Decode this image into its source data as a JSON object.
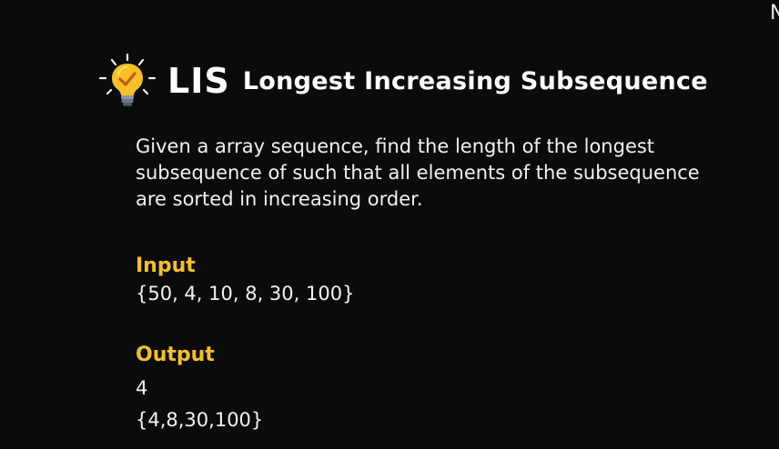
{
  "corner_glyph": "N",
  "title": {
    "main": "LIS",
    "subtitle": "Longest Increasing Subsequence",
    "icon": "lightbulb-check-icon"
  },
  "description": "Given a array sequence, find the length of the longest subsequence of  such that all elements of the subsequence are sorted in increasing order.",
  "input": {
    "label": "Input",
    "value": "{50, 4, 10, 8, 30, 100}"
  },
  "output": {
    "label": "Output",
    "length": "4",
    "sequence": "{4,8,30,100}"
  },
  "colors": {
    "background": "#0b0b0b",
    "accent": "#f6c026",
    "text": "#ffffff"
  }
}
